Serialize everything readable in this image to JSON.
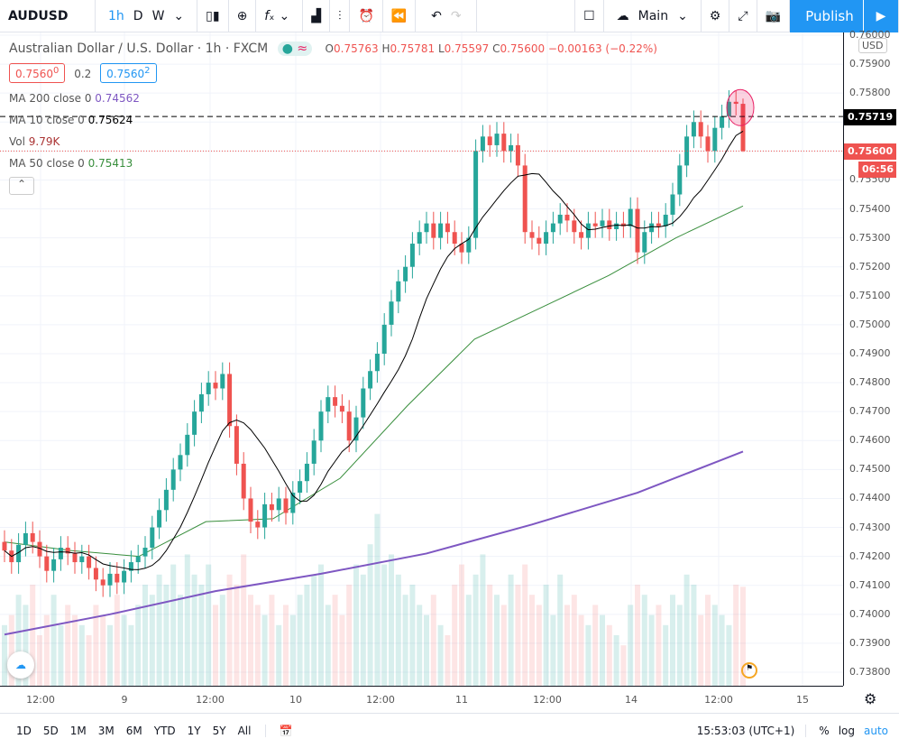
{
  "toolbar": {
    "symbol": "AUDUSD",
    "intervals": [
      "1h",
      "D",
      "W"
    ],
    "active_interval": "1h",
    "layout_label": "Main",
    "publish_label": "Publish",
    "icons": [
      "chevron-down-icon",
      "candles-icon",
      "add-compare-icon",
      "indicators-icon",
      "chevron-down-icon",
      "bar-chart-icon",
      "templates-icon",
      "alert-icon",
      "replay-icon",
      "undo-icon",
      "redo-icon",
      "square-layout-icon",
      "cloud-icon",
      "chevron-down-icon",
      "gear-icon",
      "fullscreen-icon",
      "camera-icon",
      "play-icon"
    ]
  },
  "legend": {
    "title": "Australian Dollar / U.S. Dollar · 1h · FXCM",
    "market_status": "≈",
    "o_label": "O",
    "o": "0.75763",
    "h_label": "H",
    "h": "0.75781",
    "l_label": "L",
    "l": "0.75597",
    "c_label": "C",
    "c": "0.75600",
    "change": "−0.00163 (−0.22%)",
    "sell": "0.7560",
    "sell_sup": "0",
    "spread": "0.2",
    "buy": "0.7560",
    "buy_sup": "2",
    "ma200_label": "MA 200 close 0",
    "ma200": "0.74562",
    "ma10_label": "MA 10 close 0",
    "ma10": "0.75624",
    "vol_label": "Vol",
    "vol": "9.79K",
    "ma50_label": "MA 50 close 0",
    "ma50": "0.75413"
  },
  "colors": {
    "up": "#26a69a",
    "down": "#ef5350",
    "ma10": "#000000",
    "ma50": "#388e3c",
    "ma200": "#7e57c2",
    "accent": "#2196f3"
  },
  "price_axis": {
    "labels": [
      "0.76000",
      "0.75900",
      "0.75800",
      "0.75700",
      "0.75600",
      "0.75500",
      "0.75400",
      "0.75300",
      "0.75200",
      "0.75100",
      "0.75000",
      "0.74900",
      "0.74800",
      "0.74700",
      "0.74600",
      "0.74500",
      "0.74400",
      "0.74300",
      "0.74200",
      "0.74100",
      "0.74000",
      "0.73900",
      "0.73800"
    ],
    "currency": "USD",
    "line_price": "0.75719",
    "last_price": "0.75600",
    "countdown": "06:56"
  },
  "time_axis": {
    "labels": [
      "12:00",
      "9",
      "12:00",
      "10",
      "12:00",
      "11",
      "12:00",
      "14",
      "12:00",
      "15"
    ]
  },
  "chart_data": {
    "type": "candlestick",
    "symbol": "AUDUSD",
    "interval": "1h",
    "ylim": [
      0.738,
      0.7601
    ],
    "close": [
      0.7422,
      0.7418,
      0.7424,
      0.7428,
      0.7425,
      0.742,
      0.7415,
      0.7419,
      0.7423,
      0.7421,
      0.7418,
      0.742,
      0.7416,
      0.7412,
      0.741,
      0.7414,
      0.7411,
      0.7415,
      0.7418,
      0.742,
      0.7423,
      0.743,
      0.7436,
      0.7443,
      0.745,
      0.7455,
      0.7462,
      0.747,
      0.7476,
      0.748,
      0.7478,
      0.7483,
      0.7465,
      0.7452,
      0.744,
      0.7432,
      0.743,
      0.7438,
      0.7436,
      0.744,
      0.7435,
      0.7442,
      0.7446,
      0.7452,
      0.746,
      0.747,
      0.7475,
      0.7472,
      0.747,
      0.746,
      0.7468,
      0.7478,
      0.7484,
      0.749,
      0.75,
      0.7508,
      0.7515,
      0.752,
      0.7528,
      0.7532,
      0.7535,
      0.753,
      0.7535,
      0.7532,
      0.7528,
      0.7525,
      0.753,
      0.756,
      0.7565,
      0.7562,
      0.7566,
      0.756,
      0.7562,
      0.7555,
      0.7532,
      0.753,
      0.7528,
      0.7532,
      0.7535,
      0.7538,
      0.7536,
      0.7532,
      0.753,
      0.7535,
      0.7534,
      0.7536,
      0.7533,
      0.7535,
      0.7534,
      0.754,
      0.7525,
      0.7532,
      0.7535,
      0.7534,
      0.7538,
      0.7545,
      0.7555,
      0.7565,
      0.757,
      0.7565,
      0.756,
      0.7568,
      0.7572,
      0.7577,
      0.75763,
      0.756
    ],
    "last_candle": {
      "open": 0.75763,
      "high": 0.75781,
      "low": 0.75597,
      "close": 0.756
    },
    "volume_k": [
      6,
      7,
      9,
      8,
      10,
      5,
      7,
      9,
      6,
      8,
      7,
      6,
      5,
      8,
      7,
      6,
      9,
      7,
      6,
      8,
      10,
      9,
      11,
      10,
      12,
      9,
      13,
      11,
      10,
      12,
      8,
      9,
      11,
      10,
      13,
      9,
      8,
      7,
      9,
      6,
      8,
      7,
      9,
      10,
      11,
      12,
      8,
      9,
      7,
      10,
      12,
      11,
      14,
      17,
      12,
      13,
      11,
      9,
      10,
      8,
      7,
      9,
      6,
      5,
      10,
      12,
      9,
      11,
      13,
      10,
      9,
      8,
      11,
      10,
      12,
      9,
      8,
      10,
      7,
      11,
      8,
      9,
      7,
      6,
      8,
      7,
      6,
      5,
      4,
      8,
      10,
      9,
      7,
      8,
      6,
      9,
      8,
      11,
      10,
      7,
      9,
      8,
      7,
      6,
      10,
      9.79
    ],
    "ma50": [
      0.7425,
      0.7422,
      0.742,
      0.7432,
      0.7433,
      0.7447,
      0.7472,
      0.7495,
      0.7506,
      0.7517,
      0.753,
      0.7541
    ],
    "ma200": [
      0.7393,
      0.74,
      0.7408,
      0.7414,
      0.7421,
      0.7431,
      0.7442,
      0.74562
    ],
    "price_line": 0.75719
  }
}
